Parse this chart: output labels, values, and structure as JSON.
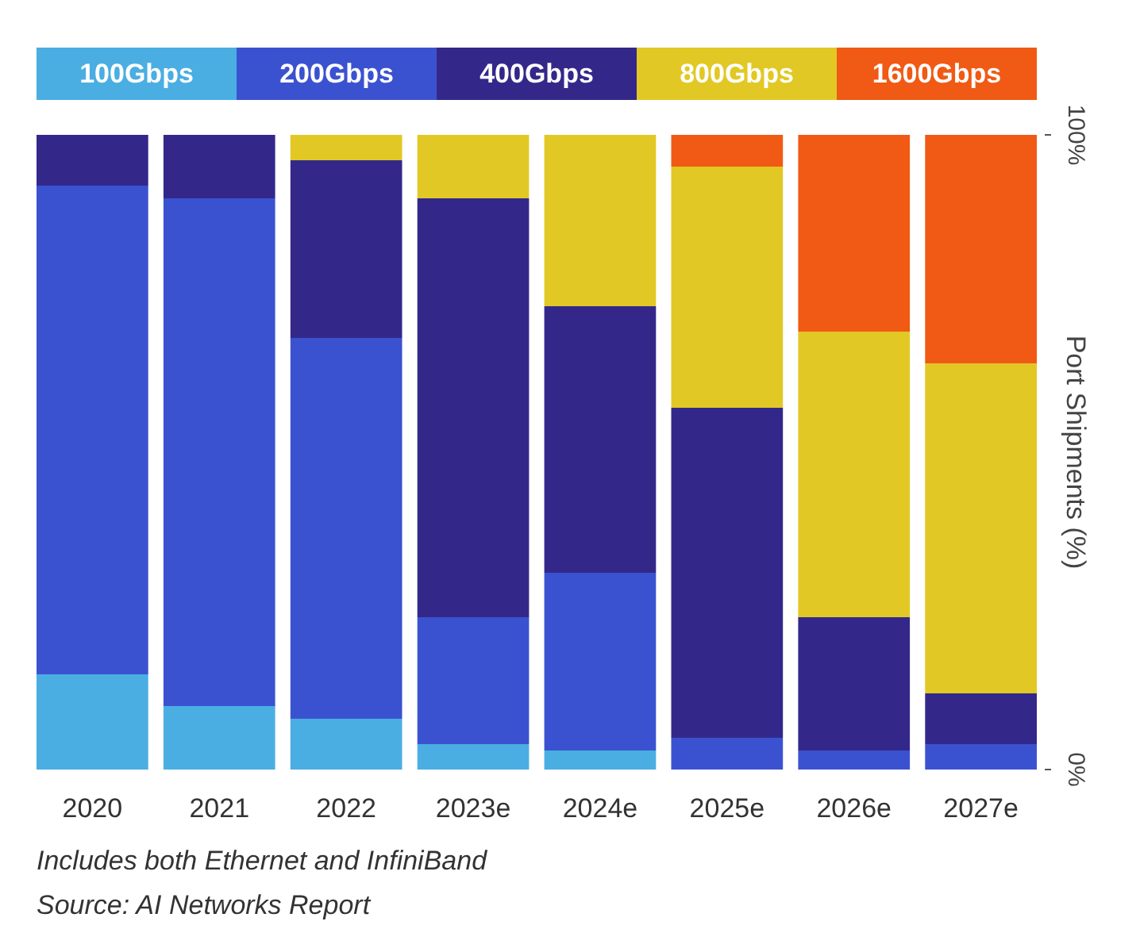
{
  "chart_data": {
    "type": "bar",
    "stacked": true,
    "categories": [
      "2020",
      "2021",
      "2022",
      "2023e",
      "2024e",
      "2025e",
      "2026e",
      "2027e"
    ],
    "ylabel": "Port Shipments (%)",
    "ylim": [
      0,
      100
    ],
    "yticks": [
      {
        "value": 0,
        "label": "0%"
      },
      {
        "value": 100,
        "label": "100%"
      }
    ],
    "legend": "top",
    "grid": false,
    "series": [
      {
        "name": "100Gbps",
        "color": "#4aaee2",
        "values": [
          15,
          10,
          8,
          4,
          3,
          0,
          0,
          0
        ]
      },
      {
        "name": "200Gbps",
        "color": "#3b52d0",
        "values": [
          77,
          80,
          60,
          20,
          28,
          5,
          3,
          4
        ]
      },
      {
        "name": "400Gbps",
        "color": "#33288a",
        "values": [
          8,
          10,
          28,
          66,
          42,
          52,
          21,
          8
        ]
      },
      {
        "name": "800Gbps",
        "color": "#e2c824",
        "values": [
          0,
          0,
          4,
          10,
          27,
          38,
          45,
          52
        ]
      },
      {
        "name": "1600Gbps",
        "color": "#f05a14",
        "values": [
          0,
          0,
          0,
          0,
          0,
          5,
          31,
          36
        ]
      }
    ],
    "annotations": [
      "Includes both Ethernet and InfiniBand",
      "Source: AI Networks Report"
    ]
  }
}
